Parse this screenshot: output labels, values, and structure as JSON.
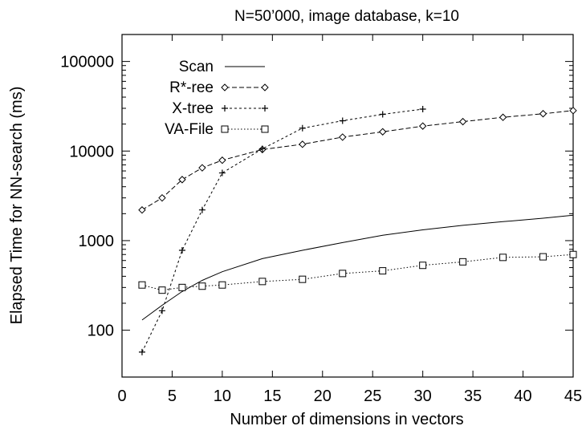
{
  "chart_data": {
    "type": "line",
    "title": "N=50’000, image database, k=10",
    "xlabel": "Number of dimensions in vectors",
    "ylabel": "Elapsed Time for NN-search (ms)",
    "xlim": [
      0,
      45
    ],
    "ylim": [
      30,
      200000
    ],
    "yscale": "log",
    "grid": false,
    "legend_position": "top-left",
    "x_ticks": [
      0,
      5,
      10,
      15,
      20,
      25,
      30,
      35,
      40,
      45
    ],
    "y_ticks": [
      100,
      1000,
      10000,
      100000
    ],
    "series": [
      {
        "name": "Scan",
        "line": "solid",
        "marker": "none",
        "points": [
          [
            2,
            130
          ],
          [
            4,
            190
          ],
          [
            6,
            270
          ],
          [
            8,
            360
          ],
          [
            10,
            450
          ],
          [
            14,
            630
          ],
          [
            18,
            780
          ],
          [
            22,
            950
          ],
          [
            26,
            1150
          ],
          [
            30,
            1320
          ],
          [
            34,
            1480
          ],
          [
            38,
            1630
          ],
          [
            42,
            1780
          ],
          [
            45,
            1920
          ]
        ]
      },
      {
        "name": "R*-ree",
        "line": "dashed",
        "marker": "diamond",
        "points": [
          [
            2,
            2200
          ],
          [
            4,
            3000
          ],
          [
            6,
            4800
          ],
          [
            8,
            6500
          ],
          [
            10,
            7900
          ],
          [
            14,
            10400
          ],
          [
            18,
            11900
          ],
          [
            22,
            14300
          ],
          [
            26,
            16400
          ],
          [
            30,
            19000
          ],
          [
            34,
            21300
          ],
          [
            38,
            23800
          ],
          [
            42,
            26100
          ],
          [
            45,
            28300
          ]
        ]
      },
      {
        "name": "X-tree",
        "line": "dotted-dense",
        "marker": "plus",
        "points": [
          [
            2,
            57
          ],
          [
            4,
            165
          ],
          [
            6,
            780
          ],
          [
            8,
            2200
          ],
          [
            10,
            5700
          ],
          [
            14,
            10600
          ],
          [
            18,
            18000
          ],
          [
            22,
            21800
          ],
          [
            26,
            25700
          ],
          [
            30,
            29400
          ]
        ]
      },
      {
        "name": "VA-File",
        "line": "dotted",
        "marker": "square",
        "points": [
          [
            2,
            320
          ],
          [
            4,
            280
          ],
          [
            6,
            300
          ],
          [
            8,
            310
          ],
          [
            10,
            320
          ],
          [
            14,
            350
          ],
          [
            18,
            370
          ],
          [
            22,
            430
          ],
          [
            26,
            460
          ],
          [
            30,
            530
          ],
          [
            34,
            580
          ],
          [
            38,
            650
          ],
          [
            42,
            660
          ],
          [
            45,
            700
          ]
        ]
      }
    ]
  }
}
